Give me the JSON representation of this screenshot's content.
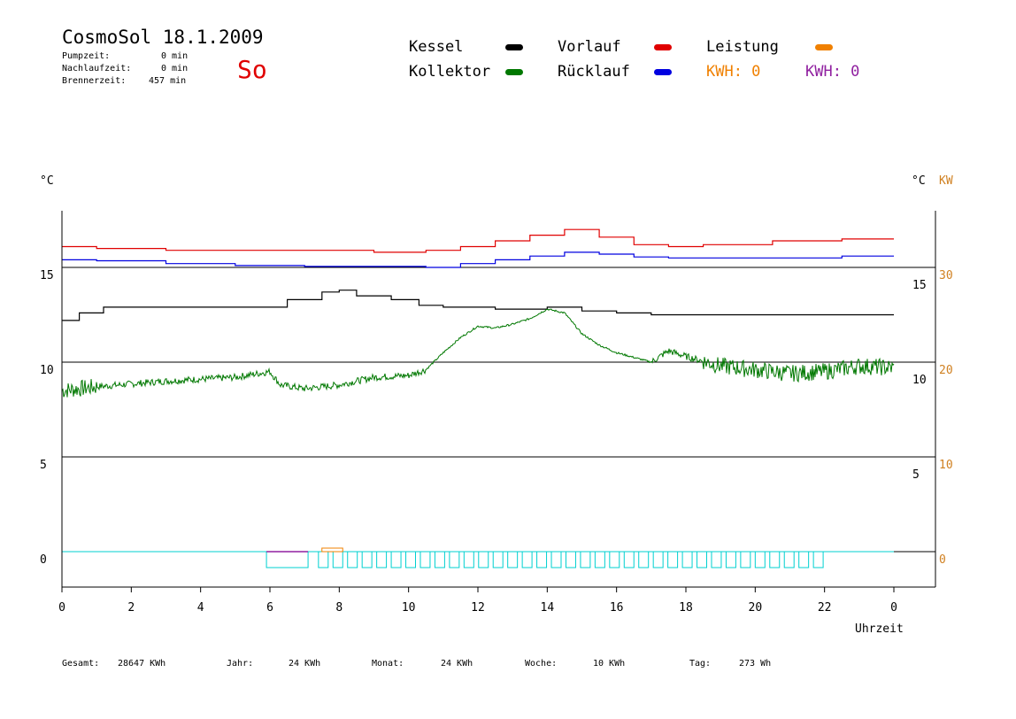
{
  "header": {
    "title": "CosmoSol 18.1.2009",
    "day": "So",
    "stats": [
      {
        "label": "Pumpzeit:",
        "value": "0 min"
      },
      {
        "label": "Nachlaufzeit:",
        "value": "0 min"
      },
      {
        "label": "Brennerzeit:",
        "value": "457 min"
      }
    ]
  },
  "legend": {
    "kessel": "Kessel",
    "kollektor": "Kollektor",
    "vorlauf": "Vorlauf",
    "ruecklauf": "Rücklauf",
    "leistung": "Leistung",
    "kwh1": "KWH: 0",
    "kwh2": "KWH: 0"
  },
  "footer": {
    "gesamt_label": "Gesamt:",
    "gesamt_value": "28647 KWh",
    "jahr_label": "Jahr:",
    "jahr_value": "24 KWh",
    "monat_label": "Monat:",
    "monat_value": "24 KWh",
    "woche_label": "Woche:",
    "woche_value": "10 KWh",
    "tag_label": "Tag:",
    "tag_value": "273 Wh"
  },
  "chart_data": {
    "type": "line",
    "colors": {
      "kessel": "#000000",
      "kollektor": "#007800",
      "vorlauf": "#e00000",
      "ruecklauf": "#0000e0",
      "leistung": "#f08000",
      "kwh2": "#9020a0",
      "pump": "#00d0d0"
    },
    "unit_left": "°C",
    "unit_right": "°C",
    "unit_right_kw": "KW",
    "xlabel": "Uhrzeit",
    "x_ticks": [
      "0",
      "2",
      "4",
      "6",
      "8",
      "10",
      "12",
      "14",
      "16",
      "18",
      "20",
      "22",
      "0"
    ],
    "y_left_ticks": [
      "15",
      "10",
      "5",
      "0"
    ],
    "y_right_deg_ticks": [
      "15",
      "10",
      "5"
    ],
    "y_right_kw_ticks": [
      "30",
      "20",
      "10",
      "0"
    ],
    "xlim": [
      0,
      24
    ],
    "ylim_left": [
      0,
      15
    ],
    "series": [
      {
        "name": "Kessel",
        "key": "kessel",
        "x": [
          0,
          0.5,
          1.2,
          5.5,
          6.5,
          7.5,
          8.0,
          8.5,
          9.5,
          10.3,
          11.0,
          12.5,
          14.0,
          14.5,
          15.0,
          16.0,
          17.0,
          18.0,
          24.0
        ],
        "y": [
          12.2,
          12.6,
          12.9,
          12.9,
          13.3,
          13.7,
          13.8,
          13.5,
          13.3,
          13.0,
          12.9,
          12.8,
          12.9,
          12.9,
          12.7,
          12.6,
          12.5,
          12.5,
          12.5
        ]
      },
      {
        "name": "Kollektor",
        "key": "kollektor",
        "noisy": true,
        "x": [
          0,
          1,
          3,
          5,
          6,
          6.3,
          7,
          8,
          9,
          10,
          10.5,
          11,
          11.5,
          12,
          12.5,
          13,
          13.5,
          14,
          14.5,
          15,
          15.5,
          16,
          17,
          17.5,
          18,
          19,
          20,
          21,
          22,
          23,
          24
        ],
        "y": [
          8.5,
          8.7,
          9.0,
          9.2,
          9.5,
          8.8,
          8.6,
          8.8,
          9.2,
          9.3,
          9.6,
          10.5,
          11.3,
          11.9,
          11.8,
          12.0,
          12.3,
          12.8,
          12.6,
          11.5,
          10.9,
          10.5,
          10.0,
          10.6,
          10.3,
          9.8,
          9.6,
          9.4,
          9.5,
          9.8,
          9.7
        ]
      },
      {
        "name": "Vorlauf",
        "key": "vorlauf",
        "x": [
          0,
          1,
          3,
          5,
          7,
          9,
          10.5,
          11.5,
          12.5,
          13.5,
          14.5,
          15.5,
          16.5,
          17.5,
          18.5,
          19.5,
          20.5,
          21.5,
          22.5,
          24
        ],
        "y": [
          16.1,
          16.0,
          15.9,
          15.9,
          15.9,
          15.8,
          15.9,
          16.1,
          16.4,
          16.7,
          17.0,
          16.6,
          16.2,
          16.1,
          16.2,
          16.2,
          16.4,
          16.4,
          16.5,
          16.5
        ]
      },
      {
        "name": "Rücklauf",
        "key": "ruecklauf",
        "x": [
          0,
          1,
          3,
          5,
          7,
          9,
          10.5,
          11.5,
          12.5,
          13.5,
          14.5,
          15.5,
          16.5,
          17.5,
          18.5,
          19.5,
          20.5,
          21.5,
          22.5,
          24
        ],
        "y": [
          15.4,
          15.35,
          15.2,
          15.1,
          15.05,
          15.05,
          15.0,
          15.2,
          15.4,
          15.6,
          15.8,
          15.7,
          15.55,
          15.5,
          15.5,
          15.5,
          15.5,
          15.5,
          15.6,
          15.6
        ]
      }
    ]
  }
}
